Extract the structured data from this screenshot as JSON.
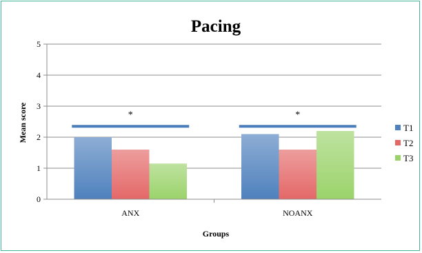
{
  "chart_data": {
    "type": "bar",
    "title": "Pacing",
    "xlabel": "Groups",
    "ylabel": "Mean score",
    "ylim": [
      0,
      5
    ],
    "yticks": [
      "0",
      "1",
      "2",
      "3",
      "4",
      "5"
    ],
    "grid": true,
    "legend_position": "right",
    "categories": [
      "ANX",
      "NOANX"
    ],
    "series": [
      {
        "name": "T1",
        "values": [
          2.0,
          2.1
        ],
        "color": "#4f81bd"
      },
      {
        "name": "T2",
        "values": [
          1.6,
          1.6
        ],
        "color": "#e46868"
      },
      {
        "name": "T3",
        "values": [
          1.15,
          2.2
        ],
        "color": "#9bd36b"
      }
    ],
    "annotations": [
      {
        "text": "*",
        "group": "ANX",
        "y": 2.35
      },
      {
        "text": "*",
        "group": "NOANX",
        "y": 2.35
      }
    ],
    "significance_bar_color": "#4a7ebb"
  }
}
